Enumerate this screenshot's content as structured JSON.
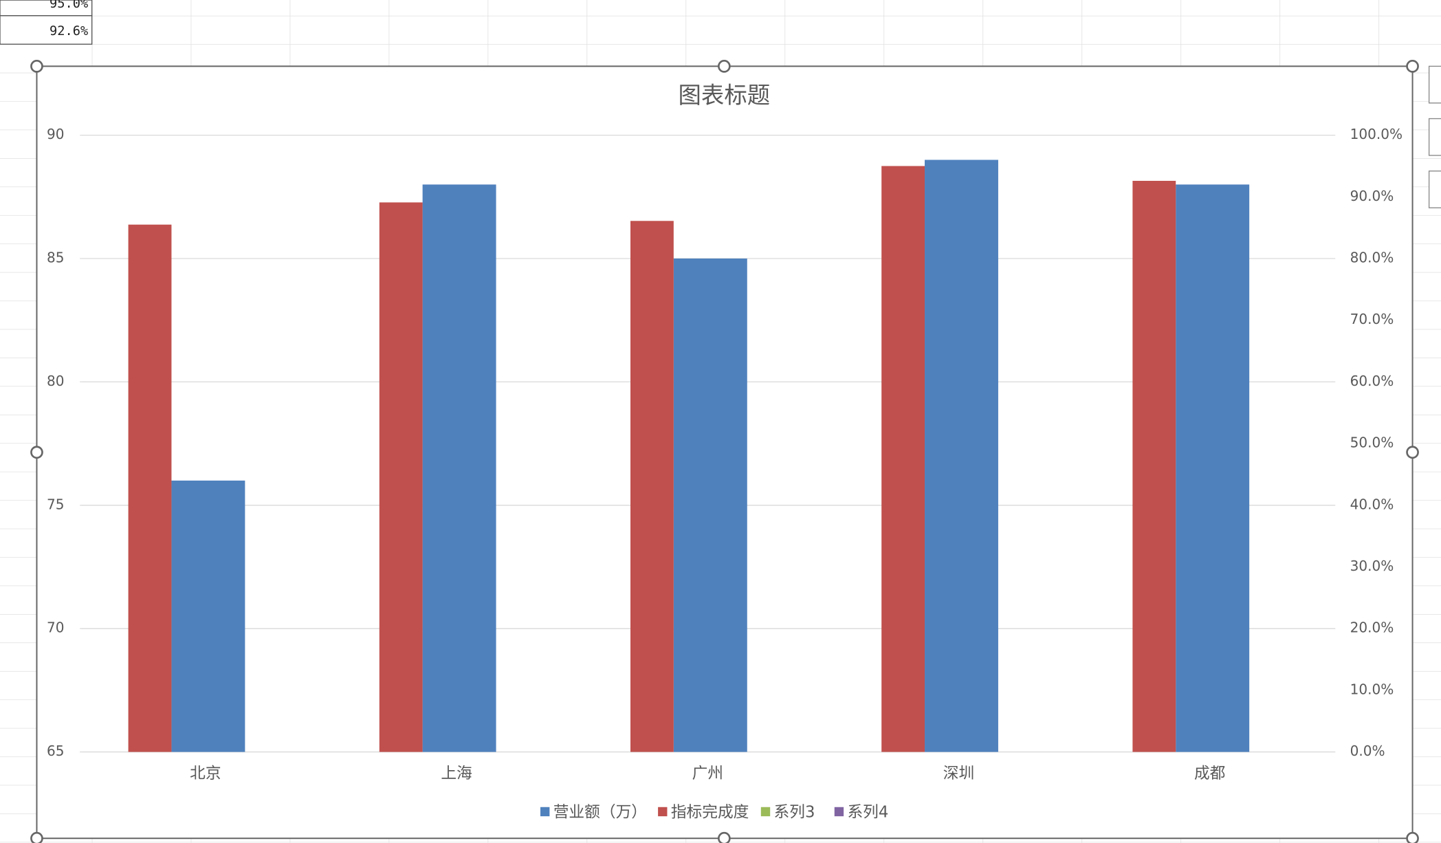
{
  "sheet_cells": [
    "95.0%",
    "92.6%"
  ],
  "chart_data": {
    "type": "bar",
    "title": "图表标题",
    "categories": [
      "北京",
      "上海",
      "广州",
      "深圳",
      "成都"
    ],
    "series": [
      {
        "name": "营业额（万）",
        "color": "#4f81bd",
        "values": [
          76,
          88,
          85,
          89,
          88
        ]
      },
      {
        "name": "指标完成度",
        "color": "#c0504d",
        "axis": "y2",
        "values": [
          85.5,
          89.1,
          86.1,
          95.0,
          92.6
        ]
      },
      {
        "name": "系列3",
        "color": "#9bbb59",
        "values": [
          null,
          null,
          null,
          null,
          null
        ]
      },
      {
        "name": "系列4",
        "color": "#8064a2",
        "values": [
          null,
          null,
          null,
          null,
          null
        ]
      }
    ],
    "ylim": [
      65,
      90
    ],
    "yticks": [
      65,
      70,
      75,
      80,
      85,
      90
    ],
    "y2lim": [
      0,
      100
    ],
    "y2ticks": [
      {
        "value": 0,
        "label": "0.0%"
      },
      {
        "value": 10,
        "label": "10.0%"
      },
      {
        "value": 20,
        "label": "20.0%"
      },
      {
        "value": 30,
        "label": "30.0%"
      },
      {
        "value": 40,
        "label": "40.0%"
      },
      {
        "value": 50,
        "label": "50.0%"
      },
      {
        "value": 60,
        "label": "60.0%"
      },
      {
        "value": 70,
        "label": "70.0%"
      },
      {
        "value": 80,
        "label": "80.0%"
      },
      {
        "value": 90,
        "label": "90.0%"
      },
      {
        "value": 100,
        "label": "100.0%"
      }
    ],
    "grid": true,
    "legend": "bottom"
  }
}
